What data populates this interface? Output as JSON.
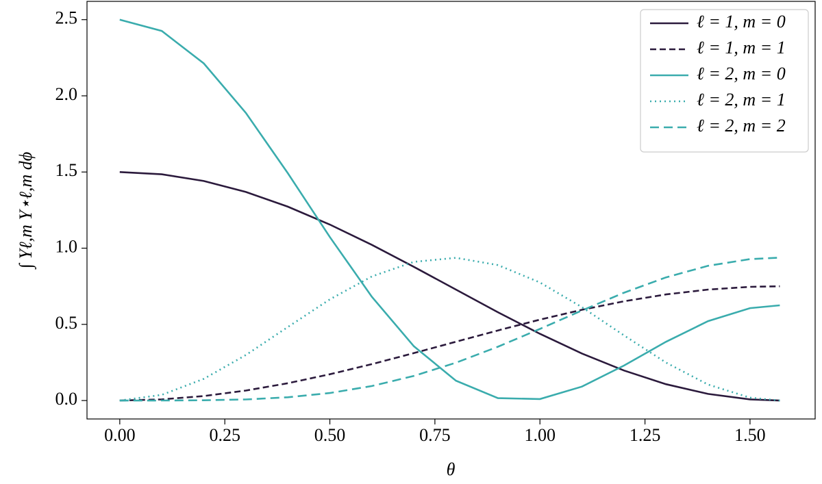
{
  "chart_data": {
    "type": "line",
    "xlabel": "θ",
    "ylabel": "∫ Yℓ,m Y⋆ℓ,m dϕ",
    "x": [
      0,
      0.1,
      0.2,
      0.3,
      0.4,
      0.5,
      0.6,
      0.7,
      0.8,
      0.9,
      1.0,
      1.1,
      1.2,
      1.3,
      1.4,
      1.5,
      1.5708
    ],
    "series": [
      {
        "name": "ℓ = 1, m = 0",
        "color": "#2b1a3c",
        "linestyle": "solid",
        "values": [
          1.5,
          1.4851,
          1.4408,
          1.369,
          1.2725,
          1.1552,
          1.0218,
          0.8775,
          0.7281,
          0.5796,
          0.4379,
          0.3086,
          0.197,
          0.1073,
          0.0433,
          0.0075,
          0
        ]
      },
      {
        "name": "ℓ = 1, m = 1",
        "color": "#2b1a3c",
        "linestyle": "dashed",
        "values": [
          0,
          0.0075,
          0.0296,
          0.0655,
          0.1137,
          0.1724,
          0.2391,
          0.3113,
          0.386,
          0.4602,
          0.5311,
          0.5957,
          0.6515,
          0.6963,
          0.7283,
          0.7462,
          0.75
        ]
      },
      {
        "name": "ℓ = 2, m = 0",
        "color": "#3aacad",
        "linestyle": "solid",
        "values": [
          2.5,
          2.4258,
          2.2128,
          1.8879,
          1.492,
          1.0733,
          0.6806,
          0.3563,
          0.1301,
          0.0158,
          0.0096,
          0.0916,
          0.2296,
          0.3854,
          0.5213,
          0.6064,
          0.625
        ]
      },
      {
        "name": "ℓ = 2, m = 1",
        "color": "#3aacad",
        "linestyle": "dotted",
        "values": [
          0,
          0.037,
          0.1422,
          0.2989,
          0.4824,
          0.6638,
          0.8144,
          0.9104,
          0.9367,
          0.8891,
          0.7751,
          0.6128,
          0.4277,
          0.2491,
          0.1052,
          0.0187,
          0
        ]
      },
      {
        "name": "ℓ = 2, m = 2",
        "color": "#3aacad",
        "linestyle": "long-dashed",
        "values": [
          0,
          0.0001,
          0.0015,
          0.0072,
          0.0216,
          0.0495,
          0.0953,
          0.1615,
          0.2483,
          0.353,
          0.47,
          0.5914,
          0.7075,
          0.8081,
          0.8841,
          0.9281,
          0.9375
        ]
      }
    ],
    "xlim": [
      -0.078,
      1.655
    ],
    "ylim": [
      -0.121,
      2.62
    ],
    "xticks": [
      {
        "value": 0,
        "label": "0.00"
      },
      {
        "value": 0.25,
        "label": "0.25"
      },
      {
        "value": 0.5,
        "label": "0.50"
      },
      {
        "value": 0.75,
        "label": "0.75"
      },
      {
        "value": 1,
        "label": "1.00"
      },
      {
        "value": 1.25,
        "label": "1.25"
      },
      {
        "value": 1.5,
        "label": "1.50"
      }
    ],
    "yticks": [
      {
        "value": 0,
        "label": "0.0"
      },
      {
        "value": 0.5,
        "label": "0.5"
      },
      {
        "value": 1,
        "label": "1.0"
      },
      {
        "value": 1.5,
        "label": "1.5"
      },
      {
        "value": 2,
        "label": "2.0"
      },
      {
        "value": 2.5,
        "label": "2.5"
      }
    ],
    "legend": "upper right"
  }
}
